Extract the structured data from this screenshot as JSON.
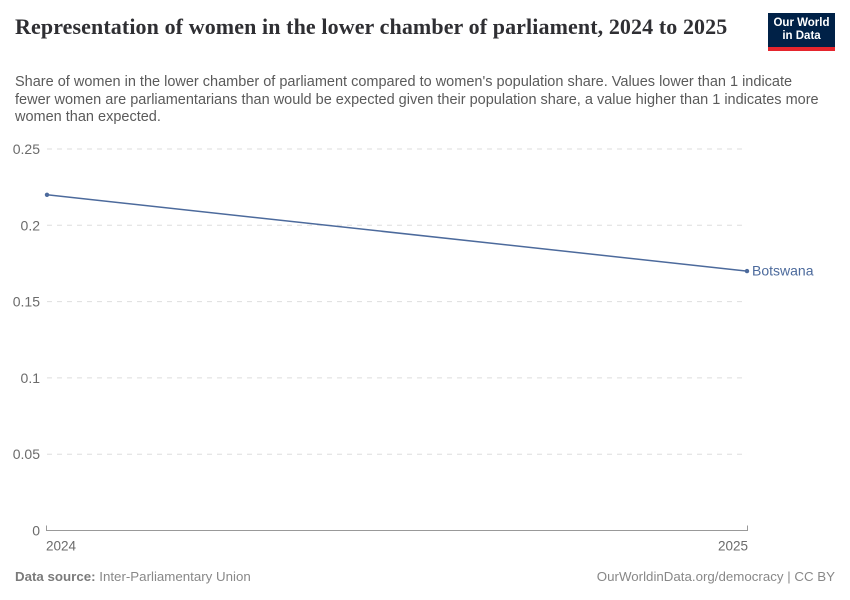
{
  "header": {
    "title": "Representation of women in the lower chamber of parliament, 2024 to 2025",
    "subtitle": "Share of women in the lower chamber of parliament compared to women's population share. Values lower than 1 indicate fewer women are parliamentarians than would be expected given their population share, a value higher than 1 indicates more women than expected."
  },
  "logo": {
    "line1": "Our World",
    "line2": "in Data",
    "bg_color": "#002147",
    "bar_color": "#e5252d"
  },
  "chart_data": {
    "type": "line",
    "title": "Representation of women in the lower chamber of parliament, 2024 to 2025",
    "x": [
      2024,
      2025
    ],
    "xtick_labels": [
      "2024",
      "2025"
    ],
    "series": [
      {
        "name": "Botswana",
        "values": [
          0.22,
          0.17
        ],
        "color": "#4C6A9C"
      }
    ],
    "ylim": [
      0,
      0.25
    ],
    "yticks": [
      0,
      0.05,
      0.1,
      0.15,
      0.2,
      0.25
    ],
    "ytick_labels": [
      "0",
      "0.05",
      "0.1",
      "0.15",
      "0.2",
      "0.25"
    ],
    "xlabel": "",
    "ylabel": "",
    "grid": "horizontal-dashed",
    "legend_position": "end-of-line",
    "colors": {
      "line": "#4C6A9C",
      "gridline": "#dedede",
      "axis": "#999999"
    }
  },
  "footer": {
    "data_source_label": "Data source:",
    "data_source_value": "Inter-Parliamentary Union",
    "attribution": "OurWorldinData.org/democracy | CC BY"
  }
}
